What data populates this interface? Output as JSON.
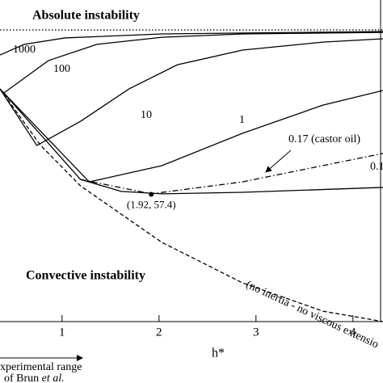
{
  "chart_data": {
    "type": "line",
    "xlabel": "h*",
    "xlim": [
      0.36,
      4.31
    ],
    "ylim": [
      0,
      145
    ],
    "xticks": [
      1,
      2,
      3,
      4
    ],
    "annotations": {
      "absolute": "Absolute instability",
      "convective": "Convective instability",
      "range": "xperimental range",
      "brun": "of Brun ",
      "etal": "et al."
    },
    "point": {
      "x": 1.92,
      "y": 57.4,
      "label": "(1.92, 57.4)"
    },
    "series": [
      {
        "x": [
          0.36,
          4.31
        ],
        "values": [
          131.5,
          131.5
        ],
        "dash": "dotted"
      },
      {
        "name": "1000",
        "x": [
          0.36,
          0.61,
          1.03,
          2.03,
          4.31
        ],
        "values": [
          120.2,
          125.0,
          127.9,
          129.7,
          130.8
        ],
        "dash": "solid"
      },
      {
        "name": "100",
        "x": [
          0.4,
          0.86,
          1.36,
          2.03,
          2.86,
          4.31
        ],
        "values": [
          103.1,
          117.7,
          125.0,
          128.2,
          129.7,
          130.4
        ],
        "dash": "solid"
      },
      {
        "name": "10",
        "x": [
          0.36,
          0.74,
          1.19,
          1.69,
          2.19,
          2.86,
          3.69,
          4.31
        ],
        "values": [
          104.9,
          79.4,
          90.3,
          104.9,
          115.8,
          122.4,
          126.0,
          127.5
        ],
        "dash": "solid"
      },
      {
        "name": "1",
        "x": [
          0.36,
          1.28,
          2.03,
          2.86,
          3.69,
          4.31
        ],
        "values": [
          104.9,
          63.0,
          70.3,
          84.9,
          97.6,
          104.2
        ],
        "dash": "solid"
      },
      {
        "name": "0.17 (castor oil)",
        "x": [
          1.19,
          1.92,
          2.86,
          4.31
        ],
        "values": [
          64.1,
          57.6,
          63.0,
          75.8
        ],
        "dash": "dashdot"
      },
      {
        "name": "0.1",
        "x": [
          0.36,
          1.19,
          1.61,
          2.03,
          2.86,
          4.31
        ],
        "values": [
          104.9,
          64.1,
          58.7,
          57.6,
          58.3,
          60.5
        ],
        "dash": "solid"
      },
      {
        "name": "(no inertia - no viscous extensio",
        "x": [
          0.36,
          0.78,
          1.19,
          2.03,
          2.86,
          3.69,
          4.31
        ],
        "values": [
          104.9,
          79.4,
          61.2,
          35.7,
          17.5,
          4.7,
          0
        ],
        "dash": "dashed"
      }
    ]
  }
}
